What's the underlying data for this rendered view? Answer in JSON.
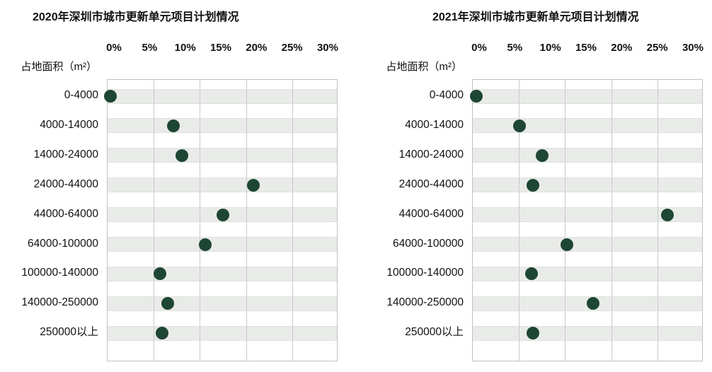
{
  "page": {
    "background": "#ffffff",
    "description_left_chart_title": "2020年深圳市城市更新单元项目计划情况",
    "description_right_chart_title": "2021年深圳市城市更新单元项目计划情况"
  },
  "chart_data": [
    {
      "type": "scatter",
      "title": "2020年深圳市城市更新单元项目计划情况",
      "axis_caption": "占地面积（m²）",
      "x_ticks": [
        "0%",
        "5%",
        "10%",
        "15%",
        "20%",
        "25%",
        "30%"
      ],
      "xlim": [
        0,
        30
      ],
      "categories": [
        "0-4000",
        "4000-14000",
        "14000-24000",
        "24000-44000",
        "44000-64000",
        "64000-100000",
        "100000-140000",
        "140000-250000",
        "250000以上"
      ],
      "values": [
        0.4,
        8.6,
        9.7,
        19.0,
        15.0,
        12.7,
        6.8,
        7.8,
        7.1
      ],
      "dot_color": "#1e4634",
      "band_color": "#e9ebe9",
      "gridline_color": "#c9c9c9",
      "grid": "vertical gridlines, shaded horizontal band per category",
      "legend": "none"
    },
    {
      "type": "scatter",
      "title": "2021年深圳市城市更新单元项目计划情况",
      "axis_caption": "占地面积（m²）",
      "x_ticks": [
        "0%",
        "5%",
        "10%",
        "15%",
        "20%",
        "25%",
        "30%"
      ],
      "xlim": [
        0,
        30
      ],
      "categories": [
        "0-4000",
        "4000-14000",
        "14000-24000",
        "24000-44000",
        "44000-64000",
        "64000-100000",
        "100000-140000",
        "140000-250000",
        "250000以上"
      ],
      "values": [
        0.5,
        6.1,
        9.0,
        7.8,
        25.3,
        12.2,
        7.6,
        15.6,
        7.8
      ],
      "dot_color": "#1e4634",
      "band_color": "#e9ebe9",
      "gridline_color": "#c9c9c9",
      "grid": "vertical gridlines, shaded horizontal band per category",
      "legend": "none"
    }
  ]
}
